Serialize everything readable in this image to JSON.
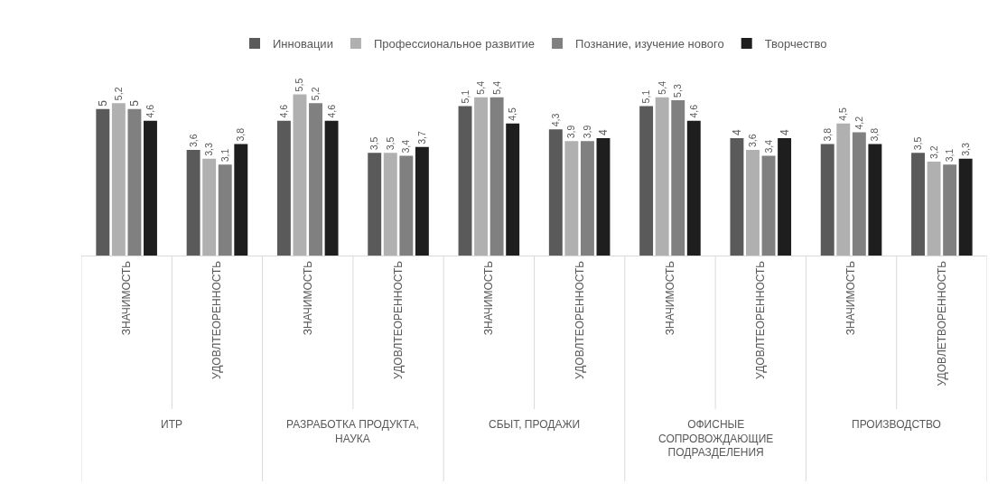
{
  "chart_data": {
    "type": "bar",
    "categories": [
      "ЗНАЧИМОСТЬ",
      "УДОВЛТЕОРЕННОСТЬ",
      "ЗНАЧИМОСТЬ",
      "УДОВЛТЕОРЕННОСТЬ",
      "ЗНАЧИМОСТЬ",
      "УДОВЛТЕОРЕННОСТЬ",
      "ЗНАЧИМОСТЬ",
      "УДОВЛТЕОРЕННОСТЬ",
      "ЗНАЧИМОСТЬ",
      "УДОВЛЕТВОРЕННОСТЬ"
    ],
    "annotations": [
      "ИТР",
      "РАЗРАБОТКА ПРОДУКТА, НАУКА",
      "СБЫТ, ПРОДАЖИ",
      "ОФИСНЫЕ СОПРОВОЖДАЮЩИЕ ПОДРАЗДЕЛЕНИЯ",
      "ПРОИЗВОДСТВО"
    ],
    "series": [
      {
        "name": "Инновации",
        "color": "#5a5a5a",
        "values": [
          5,
          3.6,
          4.6,
          3.5,
          5.1,
          4.3,
          5.1,
          4,
          3.8,
          3.5
        ],
        "value_labels": [
          "5",
          "3,6",
          "4,6",
          "3,5",
          "5,1",
          "4,3",
          "5,1",
          "4",
          "3,8",
          "3,5"
        ]
      },
      {
        "name": "Профессиональное развитие",
        "color": "#b0b0b0",
        "values": [
          5.2,
          3.3,
          5.5,
          3.5,
          5.4,
          3.9,
          5.4,
          3.6,
          4.5,
          3.2
        ],
        "value_labels": [
          "5,2",
          "3,3",
          "5,5",
          "3,5",
          "5,4",
          "3,9",
          "5,4",
          "3,6",
          "4,5",
          "3,2"
        ]
      },
      {
        "name": "Познание, изучение нового",
        "color": "#808080",
        "values": [
          5,
          3.1,
          5.2,
          3.4,
          5.4,
          3.9,
          5.3,
          3.4,
          4.2,
          3.1
        ],
        "value_labels": [
          "5",
          "3,1",
          "5,2",
          "3,4",
          "5,4",
          "3,9",
          "5,3",
          "3,4",
          "4,2",
          "3,1"
        ]
      },
      {
        "name": "Творчество",
        "color": "#1e1e1e",
        "values": [
          4.6,
          3.8,
          4.6,
          3.7,
          4.5,
          4,
          4.6,
          4,
          3.8,
          3.3
        ],
        "value_labels": [
          "4,6",
          "3,8",
          "4,6",
          "3,7",
          "4,5",
          "4",
          "4,6",
          "4",
          "3,8",
          "3,3"
        ]
      }
    ],
    "tick_labels": "x",
    "legend": "top",
    "grid": false
  }
}
